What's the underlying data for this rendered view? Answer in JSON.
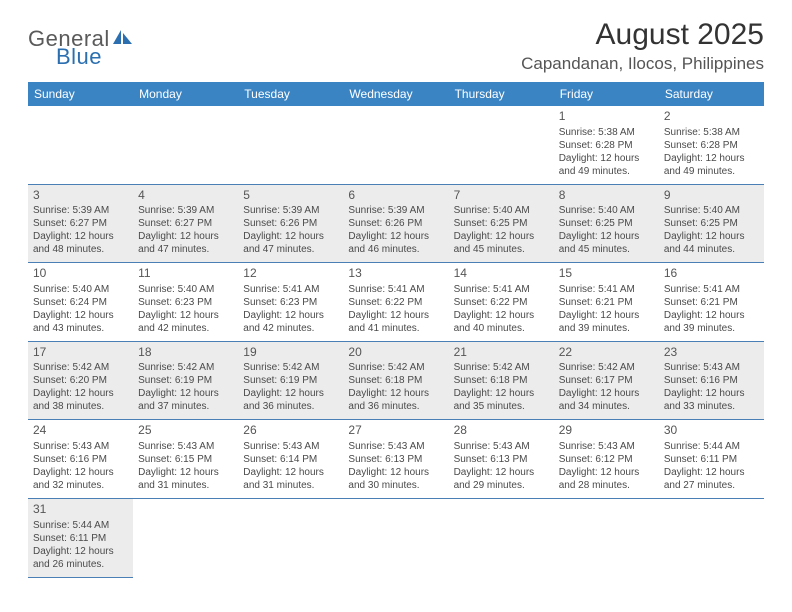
{
  "brand": {
    "part1": "General",
    "part2": "Blue"
  },
  "title": "August 2025",
  "location": "Capandanan, Ilocos, Philippines",
  "colors": {
    "header_bg": "#3b84c4",
    "header_text": "#ffffff",
    "row_alt_bg": "#ececec",
    "row_border": "#4a7fb5",
    "brand_gray": "#5a5a5a",
    "brand_blue": "#2b6fb0",
    "text": "#4a4a4a"
  },
  "weekdays": [
    "Sunday",
    "Monday",
    "Tuesday",
    "Wednesday",
    "Thursday",
    "Friday",
    "Saturday"
  ],
  "weeks": [
    {
      "alt": false,
      "days": [
        null,
        null,
        null,
        null,
        null,
        {
          "n": "1",
          "sr": "Sunrise: 5:38 AM",
          "ss": "Sunset: 6:28 PM",
          "d1": "Daylight: 12 hours",
          "d2": "and 49 minutes."
        },
        {
          "n": "2",
          "sr": "Sunrise: 5:38 AM",
          "ss": "Sunset: 6:28 PM",
          "d1": "Daylight: 12 hours",
          "d2": "and 49 minutes."
        }
      ]
    },
    {
      "alt": true,
      "days": [
        {
          "n": "3",
          "sr": "Sunrise: 5:39 AM",
          "ss": "Sunset: 6:27 PM",
          "d1": "Daylight: 12 hours",
          "d2": "and 48 minutes."
        },
        {
          "n": "4",
          "sr": "Sunrise: 5:39 AM",
          "ss": "Sunset: 6:27 PM",
          "d1": "Daylight: 12 hours",
          "d2": "and 47 minutes."
        },
        {
          "n": "5",
          "sr": "Sunrise: 5:39 AM",
          "ss": "Sunset: 6:26 PM",
          "d1": "Daylight: 12 hours",
          "d2": "and 47 minutes."
        },
        {
          "n": "6",
          "sr": "Sunrise: 5:39 AM",
          "ss": "Sunset: 6:26 PM",
          "d1": "Daylight: 12 hours",
          "d2": "and 46 minutes."
        },
        {
          "n": "7",
          "sr": "Sunrise: 5:40 AM",
          "ss": "Sunset: 6:25 PM",
          "d1": "Daylight: 12 hours",
          "d2": "and 45 minutes."
        },
        {
          "n": "8",
          "sr": "Sunrise: 5:40 AM",
          "ss": "Sunset: 6:25 PM",
          "d1": "Daylight: 12 hours",
          "d2": "and 45 minutes."
        },
        {
          "n": "9",
          "sr": "Sunrise: 5:40 AM",
          "ss": "Sunset: 6:25 PM",
          "d1": "Daylight: 12 hours",
          "d2": "and 44 minutes."
        }
      ]
    },
    {
      "alt": false,
      "days": [
        {
          "n": "10",
          "sr": "Sunrise: 5:40 AM",
          "ss": "Sunset: 6:24 PM",
          "d1": "Daylight: 12 hours",
          "d2": "and 43 minutes."
        },
        {
          "n": "11",
          "sr": "Sunrise: 5:40 AM",
          "ss": "Sunset: 6:23 PM",
          "d1": "Daylight: 12 hours",
          "d2": "and 42 minutes."
        },
        {
          "n": "12",
          "sr": "Sunrise: 5:41 AM",
          "ss": "Sunset: 6:23 PM",
          "d1": "Daylight: 12 hours",
          "d2": "and 42 minutes."
        },
        {
          "n": "13",
          "sr": "Sunrise: 5:41 AM",
          "ss": "Sunset: 6:22 PM",
          "d1": "Daylight: 12 hours",
          "d2": "and 41 minutes."
        },
        {
          "n": "14",
          "sr": "Sunrise: 5:41 AM",
          "ss": "Sunset: 6:22 PM",
          "d1": "Daylight: 12 hours",
          "d2": "and 40 minutes."
        },
        {
          "n": "15",
          "sr": "Sunrise: 5:41 AM",
          "ss": "Sunset: 6:21 PM",
          "d1": "Daylight: 12 hours",
          "d2": "and 39 minutes."
        },
        {
          "n": "16",
          "sr": "Sunrise: 5:41 AM",
          "ss": "Sunset: 6:21 PM",
          "d1": "Daylight: 12 hours",
          "d2": "and 39 minutes."
        }
      ]
    },
    {
      "alt": true,
      "days": [
        {
          "n": "17",
          "sr": "Sunrise: 5:42 AM",
          "ss": "Sunset: 6:20 PM",
          "d1": "Daylight: 12 hours",
          "d2": "and 38 minutes."
        },
        {
          "n": "18",
          "sr": "Sunrise: 5:42 AM",
          "ss": "Sunset: 6:19 PM",
          "d1": "Daylight: 12 hours",
          "d2": "and 37 minutes."
        },
        {
          "n": "19",
          "sr": "Sunrise: 5:42 AM",
          "ss": "Sunset: 6:19 PM",
          "d1": "Daylight: 12 hours",
          "d2": "and 36 minutes."
        },
        {
          "n": "20",
          "sr": "Sunrise: 5:42 AM",
          "ss": "Sunset: 6:18 PM",
          "d1": "Daylight: 12 hours",
          "d2": "and 36 minutes."
        },
        {
          "n": "21",
          "sr": "Sunrise: 5:42 AM",
          "ss": "Sunset: 6:18 PM",
          "d1": "Daylight: 12 hours",
          "d2": "and 35 minutes."
        },
        {
          "n": "22",
          "sr": "Sunrise: 5:42 AM",
          "ss": "Sunset: 6:17 PM",
          "d1": "Daylight: 12 hours",
          "d2": "and 34 minutes."
        },
        {
          "n": "23",
          "sr": "Sunrise: 5:43 AM",
          "ss": "Sunset: 6:16 PM",
          "d1": "Daylight: 12 hours",
          "d2": "and 33 minutes."
        }
      ]
    },
    {
      "alt": false,
      "days": [
        {
          "n": "24",
          "sr": "Sunrise: 5:43 AM",
          "ss": "Sunset: 6:16 PM",
          "d1": "Daylight: 12 hours",
          "d2": "and 32 minutes."
        },
        {
          "n": "25",
          "sr": "Sunrise: 5:43 AM",
          "ss": "Sunset: 6:15 PM",
          "d1": "Daylight: 12 hours",
          "d2": "and 31 minutes."
        },
        {
          "n": "26",
          "sr": "Sunrise: 5:43 AM",
          "ss": "Sunset: 6:14 PM",
          "d1": "Daylight: 12 hours",
          "d2": "and 31 minutes."
        },
        {
          "n": "27",
          "sr": "Sunrise: 5:43 AM",
          "ss": "Sunset: 6:13 PM",
          "d1": "Daylight: 12 hours",
          "d2": "and 30 minutes."
        },
        {
          "n": "28",
          "sr": "Sunrise: 5:43 AM",
          "ss": "Sunset: 6:13 PM",
          "d1": "Daylight: 12 hours",
          "d2": "and 29 minutes."
        },
        {
          "n": "29",
          "sr": "Sunrise: 5:43 AM",
          "ss": "Sunset: 6:12 PM",
          "d1": "Daylight: 12 hours",
          "d2": "and 28 minutes."
        },
        {
          "n": "30",
          "sr": "Sunrise: 5:44 AM",
          "ss": "Sunset: 6:11 PM",
          "d1": "Daylight: 12 hours",
          "d2": "and 27 minutes."
        }
      ]
    },
    {
      "alt": true,
      "last": true,
      "days": [
        {
          "n": "31",
          "sr": "Sunrise: 5:44 AM",
          "ss": "Sunset: 6:11 PM",
          "d1": "Daylight: 12 hours",
          "d2": "and 26 minutes."
        },
        null,
        null,
        null,
        null,
        null,
        null
      ]
    }
  ]
}
